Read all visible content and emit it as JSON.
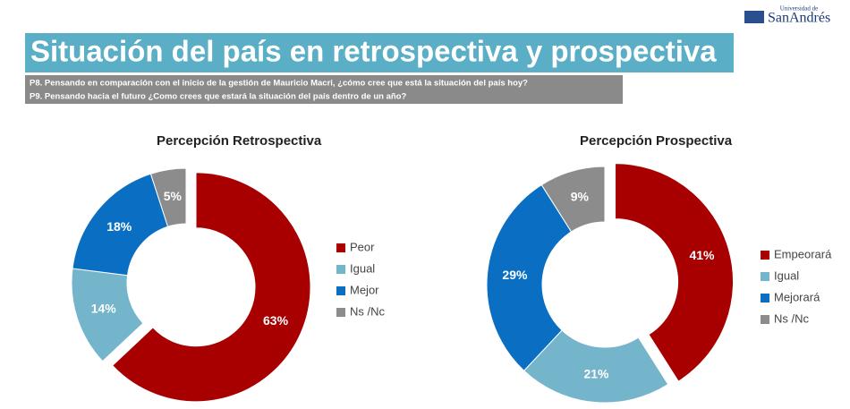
{
  "logo": {
    "small": "Universidad de",
    "name": "SanAndrés"
  },
  "header": {
    "title": "Situación del país en retrospectiva y prospectiva",
    "questions": [
      "P8. Pensando en comparación con el inicio de la gestión de Mauricio Macri, ¿cómo cree que está la situación del país hoy?",
      "P9. Pensando hacia el futuro ¿Como crees que estará la situación del país dentro de un año?"
    ]
  },
  "chart_data": [
    {
      "type": "donut",
      "title": "Percepción Retrospectiva",
      "categories": [
        "Peor",
        "Igual",
        "Mejor",
        "Ns /Nc"
      ],
      "values": [
        63,
        14,
        18,
        5
      ],
      "value_labels": [
        "63%",
        "14%",
        "18%",
        "5%"
      ],
      "colors": [
        "#a80000",
        "#74b5cc",
        "#0a6fc2",
        "#8c8c8c"
      ]
    },
    {
      "type": "donut",
      "title": "Percepción Prospectiva",
      "categories": [
        "Empeorará",
        "Igual",
        "Mejorará",
        "Ns /Nc"
      ],
      "values": [
        41,
        21,
        29,
        9
      ],
      "value_labels": [
        "41%",
        "21%",
        "29%",
        "9%"
      ],
      "colors": [
        "#a80000",
        "#74b5cc",
        "#0a6fc2",
        "#8c8c8c"
      ]
    }
  ]
}
